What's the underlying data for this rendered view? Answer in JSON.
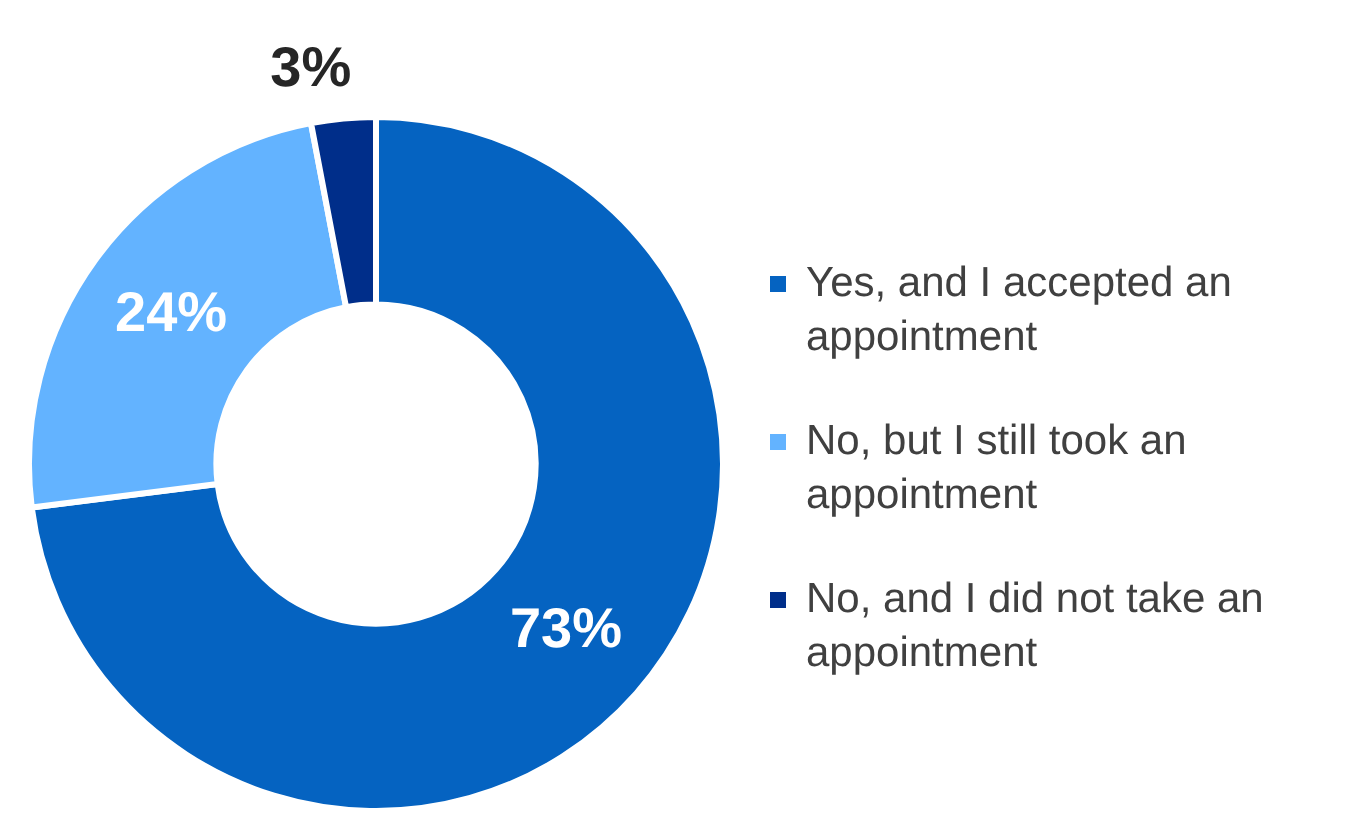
{
  "chart_data": {
    "type": "donut",
    "categories": [
      "Yes, and I accepted an appointment",
      "No, but I still took an appointment",
      "No, and I did not take an appointment"
    ],
    "values": [
      73,
      24,
      3
    ],
    "colors": [
      "#0563c1",
      "#63b3ff",
      "#002e8a"
    ],
    "value_labels": [
      "73%",
      "24%",
      "3%"
    ],
    "legend": "right"
  }
}
